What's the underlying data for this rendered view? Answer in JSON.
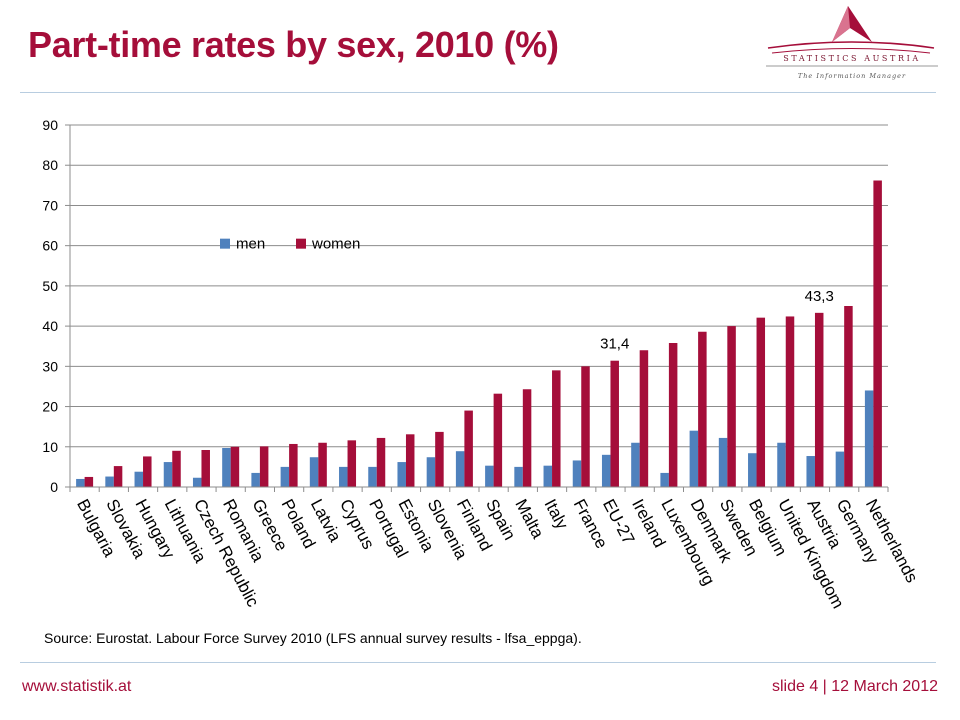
{
  "slide": {
    "title": "Part-time rates by sex, 2010 (%)",
    "source": "Source: Eurostat. Labour Force Survey 2010 (LFS annual survey results - lfsa_eppga).",
    "footer_left": "www.statistik.at",
    "footer_right": "slide 4  |  12 March 2012"
  },
  "logo": {
    "name": "STATISTICS AUSTRIA",
    "tagline": "The Information Manager",
    "icon": "triangle-logo-icon"
  },
  "colors": {
    "title": "#a50e3a",
    "men": "#4f81bd",
    "women": "#a50e3a",
    "rule": "#b8cde0"
  },
  "chart_data": {
    "type": "bar",
    "title": "",
    "xlabel": "",
    "ylabel": "",
    "ylim": [
      0,
      90
    ],
    "yticks": [
      0,
      10,
      20,
      30,
      40,
      50,
      60,
      70,
      80,
      90
    ],
    "grid": true,
    "legend_position": "upper-left",
    "categories": [
      "Bulgaria",
      "Slovakia",
      "Hungary",
      "Lithuania",
      "Czech Republic",
      "Romania",
      "Greece",
      "Poland",
      "Latvia",
      "Cyprus",
      "Portugal",
      "Estonia",
      "Slovenia",
      "Finland",
      "Spain",
      "Malta",
      "Italy",
      "France",
      "EU-27",
      "Ireland",
      "Luxembourg",
      "Denmark",
      "Sweden",
      "Belgium",
      "United Kingdom",
      "Austria",
      "Germany",
      "Netherlands"
    ],
    "series": [
      {
        "name": "men",
        "values": [
          2.0,
          2.6,
          3.8,
          6.2,
          2.3,
          9.7,
          3.5,
          5.0,
          7.4,
          5.0,
          5.0,
          6.2,
          7.4,
          8.9,
          5.3,
          5.0,
          5.3,
          6.6,
          8.0,
          11.0,
          3.5,
          14.0,
          12.2,
          8.4,
          11.0,
          7.7,
          8.8,
          24.0
        ]
      },
      {
        "name": "women",
        "values": [
          2.5,
          5.2,
          7.6,
          9.0,
          9.2,
          10.0,
          10.1,
          10.7,
          11.0,
          11.6,
          12.2,
          13.1,
          13.7,
          19.0,
          23.2,
          24.3,
          29.0,
          30.0,
          31.4,
          34.0,
          35.8,
          38.6,
          40.0,
          42.1,
          42.4,
          43.3,
          45.0,
          76.2
        ]
      }
    ],
    "data_labels": [
      {
        "category": "EU-27",
        "series": "women",
        "text": "31,4"
      },
      {
        "category": "Austria",
        "series": "women",
        "text": "43,3"
      }
    ]
  }
}
